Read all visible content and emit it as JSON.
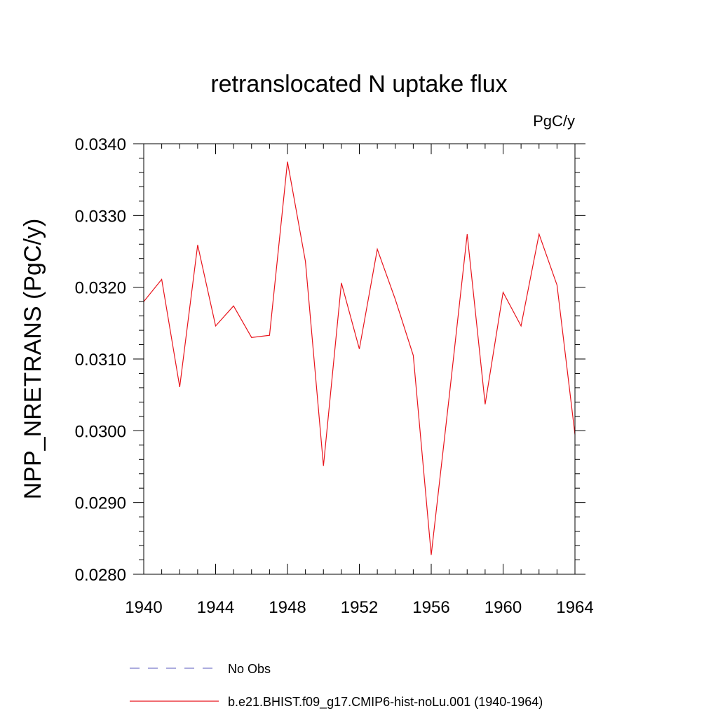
{
  "chart_data": {
    "type": "line",
    "title": "retranslocated N uptake flux",
    "units_label": "PgC/y",
    "ylabel": "NPP_NRETRANS  (PgC/y)",
    "xlabel": "",
    "xlim": [
      1940,
      1964
    ],
    "ylim": [
      0.028,
      0.034
    ],
    "x_ticks": [
      1940,
      1944,
      1948,
      1952,
      1956,
      1960,
      1964
    ],
    "x_tick_labels": [
      "1940",
      "1944",
      "1948",
      "1952",
      "1956",
      "1960",
      "1964"
    ],
    "y_ticks": [
      0.028,
      0.029,
      0.03,
      0.031,
      0.032,
      0.033,
      0.034
    ],
    "y_tick_labels": [
      "0.0280",
      "0.0290",
      "0.0300",
      "0.0310",
      "0.0320",
      "0.0330",
      "0.0340"
    ],
    "grid": false,
    "legend_position": "bottom",
    "series": [
      {
        "name": "No Obs",
        "color": "#7b7bc9",
        "dash": "dashed",
        "x": [],
        "y": []
      },
      {
        "name": "b.e21.BHIST.f09_g17.CMIP6-hist-noLu.001 (1940-1964)",
        "color": "#e8141c",
        "dash": "solid",
        "x": [
          1940,
          1941,
          1942,
          1943,
          1944,
          1945,
          1946,
          1947,
          1948,
          1949,
          1950,
          1951,
          1952,
          1953,
          1954,
          1955,
          1956,
          1957,
          1958,
          1959,
          1960,
          1961,
          1962,
          1963,
          1964
        ],
        "y": [
          0.0318,
          0.03211,
          0.03061,
          0.03259,
          0.03146,
          0.03174,
          0.0313,
          0.03133,
          0.03375,
          0.03236,
          0.02951,
          0.03206,
          0.03114,
          0.03253,
          0.03183,
          0.03105,
          0.02827,
          0.03047,
          0.03274,
          0.03037,
          0.03193,
          0.03146,
          0.03274,
          0.03203,
          0.02995
        ]
      }
    ]
  }
}
